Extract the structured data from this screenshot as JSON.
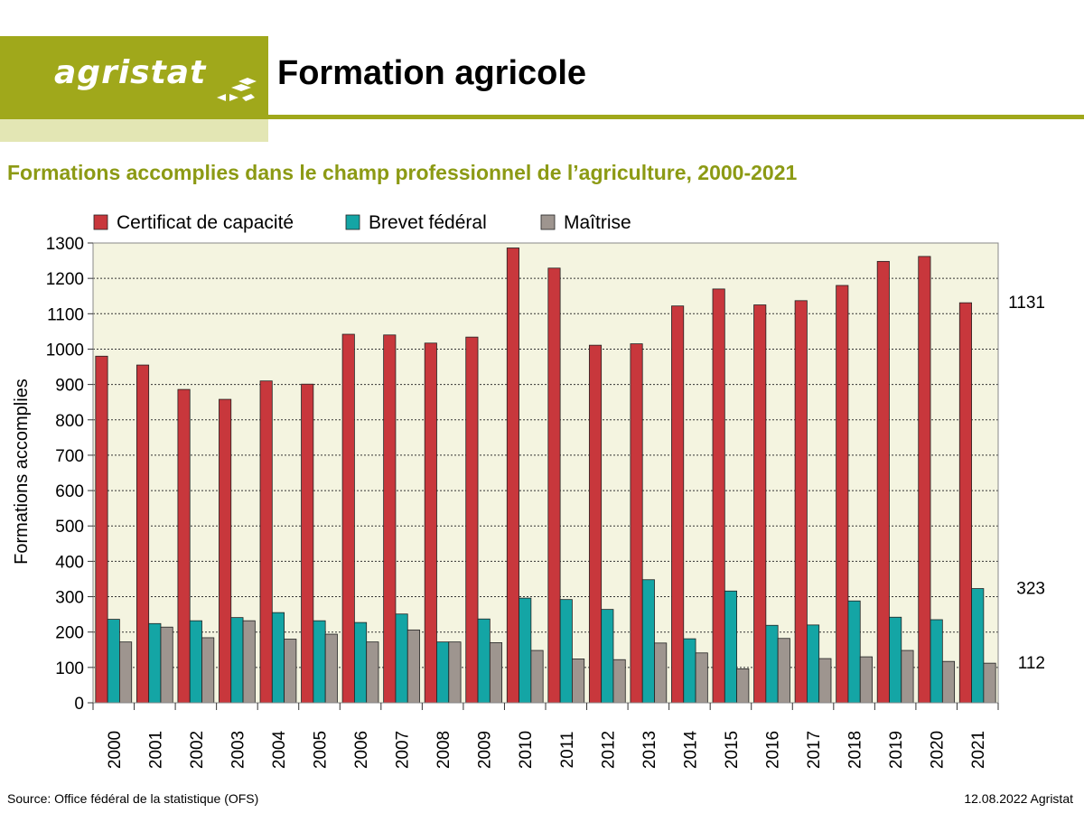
{
  "header": {
    "logo_text": "agristat",
    "title": "Formation agricole"
  },
  "footer": {
    "source": "Source: Office fédéral de la statistique (OFS)",
    "date_credit": "12.08.2022 Agristat"
  },
  "colors": {
    "brand": "#a0a81b",
    "certificat": "#c8373c",
    "brevet": "#14a5a5",
    "maitrise": "#9e958f",
    "plot_bg": "#f4f4e0"
  },
  "chart_data": {
    "type": "bar",
    "title": "Formations accomplies dans le champ professionnel de l’agriculture, 2000-2021",
    "ylabel": "Formations  accomplies",
    "xlabel": "",
    "ylim": [
      0,
      1300
    ],
    "yticks": [
      0,
      100,
      200,
      300,
      400,
      500,
      600,
      700,
      800,
      900,
      1000,
      1100,
      1200,
      1300
    ],
    "grid": true,
    "legend": "top",
    "categories": [
      "2000",
      "2001",
      "2002",
      "2003",
      "2004",
      "2005",
      "2006",
      "2007",
      "2008",
      "2009",
      "2010",
      "2011",
      "2012",
      "2013",
      "2014",
      "2015",
      "2016",
      "2017",
      "2018",
      "2019",
      "2020",
      "2021"
    ],
    "series": [
      {
        "name": "Certificat de capacité",
        "color": "#c8373c",
        "values": [
          980,
          955,
          886,
          858,
          910,
          901,
          1042,
          1040,
          1017,
          1034,
          1286,
          1229,
          1011,
          1015,
          1122,
          1170,
          1125,
          1137,
          1180,
          1248,
          1262,
          1131
        ]
      },
      {
        "name": "Brevet fédéral",
        "color": "#14a5a5",
        "values": [
          236,
          224,
          232,
          241,
          255,
          232,
          227,
          251,
          172,
          237,
          296,
          292,
          264,
          348,
          181,
          316,
          219,
          220,
          288,
          242,
          235,
          323
        ]
      },
      {
        "name": "Maîtrise",
        "color": "#9e958f",
        "values": [
          172,
          214,
          184,
          232,
          180,
          194,
          172,
          206,
          172,
          170,
          148,
          124,
          122,
          169,
          141,
          96,
          182,
          125,
          130,
          148,
          117,
          112
        ]
      }
    ],
    "annotations": [
      {
        "text": "1131",
        "value": 1131
      },
      {
        "text": "323",
        "value": 323
      },
      {
        "text": "112",
        "value": 112
      }
    ]
  }
}
